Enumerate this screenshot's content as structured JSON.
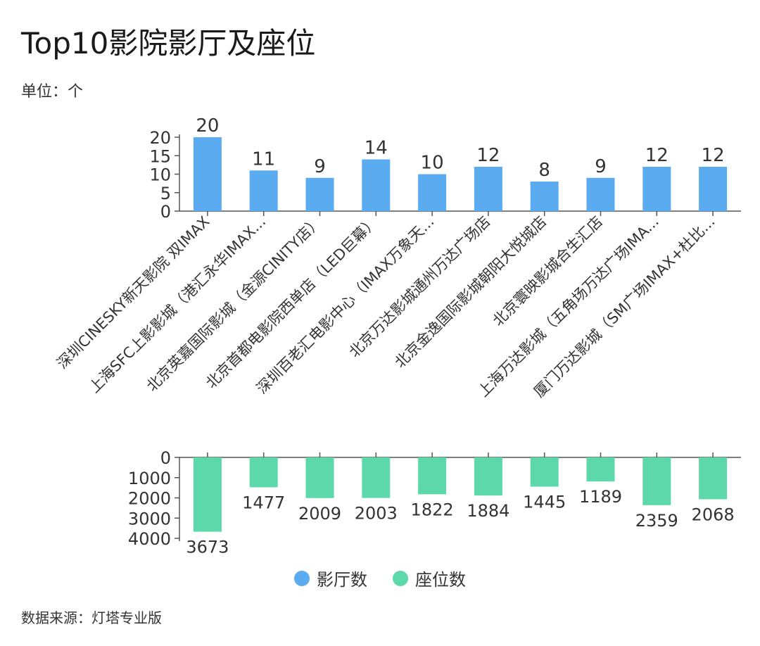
{
  "header": {
    "title": "Top10影院影厅及座位",
    "unit": "单位：个"
  },
  "footer": {
    "source": "数据来源：灯塔专业版"
  },
  "colors": {
    "halls": "#5aabf0",
    "seats": "#5dd8aa",
    "axis": "#555555"
  },
  "legend": [
    {
      "label": "影厅数",
      "color": "#5aabf0"
    },
    {
      "label": "座位数",
      "color": "#5dd8aa"
    }
  ],
  "chart_data": [
    {
      "type": "bar",
      "title": "",
      "categories": [
        "深圳CINESKY新天影院 双IMAX",
        "上海SFC上影影城（港汇永华IMAX...",
        "北京英嘉国际影城（金源CINITY店）",
        "北京首都电影院西单店（LED巨幕）",
        "深圳百老汇电影中心（IMAX万象天...",
        "北京万达影城通州万达广场店",
        "北京金逸国际影城朝阳大悦城店",
        "北京寰映影城合生汇店",
        "上海万达影城（五角场万达广场IMA...",
        "厦门万达影城（SM广场IMAX+杜比..."
      ],
      "series": [
        {
          "name": "影厅数",
          "values": [
            20,
            11,
            9,
            14,
            10,
            12,
            8,
            9,
            12,
            12
          ]
        }
      ],
      "yticks": [
        "0",
        "5",
        "10",
        "15",
        "20"
      ],
      "ylim": [
        0,
        20
      ],
      "xlabel": "",
      "ylabel": ""
    },
    {
      "type": "bar",
      "title": "",
      "categories": [
        "深圳CINESKY新天影院 双IMAX",
        "上海SFC上影影城（港汇永华IMAX...",
        "北京英嘉国际影城（金源CINITY店）",
        "北京首都电影院西单店（LED巨幕）",
        "深圳百老汇电影中心（IMAX万象天...",
        "北京万达影城通州万达广场店",
        "北京金逸国际影城朝阳大悦城店",
        "北京寰映影城合生汇店",
        "上海万达影城（五角场万达广场IMA...",
        "厦门万达影城（SM广场IMAX+杜比..."
      ],
      "series": [
        {
          "name": "座位数",
          "values": [
            3673,
            1477,
            2009,
            2003,
            1822,
            1884,
            1445,
            1189,
            2359,
            2068
          ]
        }
      ],
      "yticks": [
        "0",
        "1000",
        "2000",
        "3000",
        "4000"
      ],
      "ylim": [
        0,
        4000
      ],
      "inverted": true,
      "xlabel": "",
      "ylabel": ""
    }
  ]
}
